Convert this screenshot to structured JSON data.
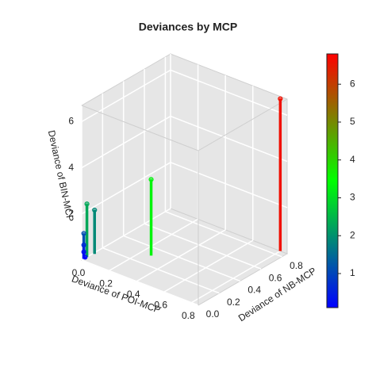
{
  "chart_data": {
    "type": "scatter3d",
    "title": "Deviances by MCP",
    "x_label": "Deviance of POI-MCP",
    "y_label": "Deviance of NB-MCP",
    "z_label": "Deviance of BIN-MCP",
    "x": [
      0.8,
      0.27,
      0.01,
      0,
      0,
      0,
      0,
      0.01
    ],
    "y": [
      0.85,
      0.31,
      0.11,
      0.05,
      0.02,
      0.02,
      0.02,
      0.02
    ],
    "z": [
      6.6,
      3.3,
      1.9,
      2.3,
      1.1,
      0.6,
      0.3,
      0.1
    ],
    "xlim": [
      0,
      0.85
    ],
    "ylim": [
      0,
      0.85
    ],
    "zlim": [
      0,
      6.7
    ],
    "xticks": [
      {
        "value": 0,
        "label": "0.0"
      },
      0.2,
      0.4,
      0.6,
      0.8
    ],
    "yticks": [
      {
        "value": 0,
        "label": "0.0"
      },
      0.2,
      0.4,
      0.6,
      0.8
    ],
    "zticks": [
      2,
      4,
      6
    ],
    "colorscale": [
      "#0000ff",
      "#00ff00",
      "#ff0000"
    ],
    "clim": [
      0.1,
      6.8
    ],
    "cticks": [
      1,
      2,
      3,
      4,
      5,
      6
    ],
    "grid": true
  }
}
